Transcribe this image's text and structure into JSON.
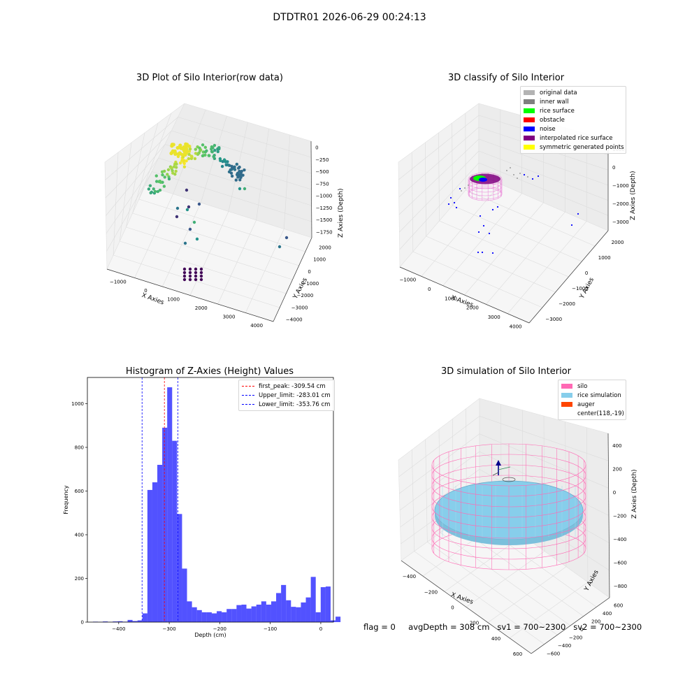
{
  "figure": {
    "suptitle": "DTDTR01 2026-06-29 00:24:13"
  },
  "colors": {
    "silo": "#ff69b4",
    "rice": "#87ceeb",
    "auger": "#ff4500",
    "hist": "#0000ff",
    "peak_line": "#ff0000",
    "limit_line": "#0000ff",
    "original_data": "#b3b3b3",
    "inner_wall": "#808080",
    "rice_surface": "#00ff00",
    "obstacle": "#ff0000",
    "noise": "#0000ff",
    "interpolated_rice_surface": "#800080",
    "symmetric_generated_points": "#ffff00"
  },
  "chart_data": [
    {
      "type": "scatter",
      "title": "3D Plot of Silo Interior(row data)",
      "xlabel": "X Axies",
      "ylabel": "Y Axies",
      "zlabel": "Z Axies (Depth)",
      "x_ticks": [
        "−1000",
        "0",
        "1000",
        "2000",
        "3000",
        "4000"
      ],
      "y_ticks": [
        "−4000",
        "−3000",
        "−2000",
        "−1000",
        "0",
        "1000",
        "2000"
      ],
      "z_ticks": [
        "0",
        "−250",
        "−500",
        "−750",
        "−1000",
        "−1250",
        "−1500",
        "−1750"
      ],
      "colormap": "viridis"
    },
    {
      "type": "scatter",
      "title": "3D classify of Silo Interior",
      "xlabel": "X Axies",
      "ylabel": "Y Axies",
      "zlabel": "Z Axies (Depth)",
      "x_ticks": [
        "−1000",
        "0",
        "1000",
        "2000",
        "3000",
        "4000"
      ],
      "y_ticks": [
        "−3000",
        "−2000",
        "−1000",
        "0",
        "1000",
        "2000"
      ],
      "z_ticks": [
        "1000",
        "0",
        "−1000",
        "−2000",
        "−3000"
      ],
      "legend": [
        "original data",
        "inner wall",
        "rice surface",
        "obstacle",
        "noise",
        "interpolated rice surface",
        "symmetric generated points"
      ],
      "legend_position": "top-right"
    },
    {
      "type": "bar",
      "title": "Histogram of Z-Axies (Height) Values",
      "xlabel": "Depth (cm)",
      "ylabel": "Frequency",
      "xlim": [
        -462,
        25
      ],
      "ylim": [
        0,
        1120
      ],
      "x_ticks": [
        -400,
        -300,
        -200,
        -100,
        0
      ],
      "y_ticks": [
        0,
        200,
        400,
        600,
        800,
        1000
      ],
      "bin_start": -451,
      "bin_width": 9.8,
      "counts": [
        2,
        1,
        3,
        1,
        3,
        4,
        2,
        10,
        5,
        8,
        40,
        605,
        640,
        720,
        890,
        1075,
        830,
        495,
        245,
        95,
        68,
        55,
        45,
        45,
        40,
        50,
        45,
        60,
        60,
        78,
        80,
        62,
        72,
        80,
        95,
        80,
        95,
        133,
        170,
        100,
        70,
        68,
        90,
        113,
        207,
        45,
        160,
        163,
        8,
        25
      ],
      "vlines": [
        {
          "label": "first_peak: -309.54 cm",
          "x": -309.54,
          "color": "#ff0000"
        },
        {
          "label": "Upper_limit: -283.01 cm",
          "x": -283.01,
          "color": "#0000ff"
        },
        {
          "label": "Lower_limit: -353.76 cm",
          "x": -353.76,
          "color": "#0000ff"
        }
      ],
      "legend_position": "top-right"
    },
    {
      "type": "surface",
      "title": "3D simulation of Silo Interior",
      "xlabel": "X Axies",
      "ylabel": "Y Axies",
      "zlabel": "Z Axies (Depth)",
      "x_ticks": [
        "−400",
        "−200",
        "0",
        "200",
        "400",
        "600"
      ],
      "y_ticks": [
        "−600",
        "−400",
        "−200",
        "0",
        "200",
        "400",
        "600"
      ],
      "z_ticks": [
        "400",
        "200",
        "0",
        "−200",
        "−400",
        "−600",
        "−800"
      ],
      "legend": [
        "silo",
        "rice simulation",
        "auger",
        "center(118,-19)"
      ],
      "legend_position": "top-right"
    }
  ],
  "footer": {
    "flag": "flag = 0",
    "avg_depth": "avgDepth = 308 cm",
    "sv1": "sv1 = 700~2300",
    "sv2": "sv2 = 700~2300"
  }
}
